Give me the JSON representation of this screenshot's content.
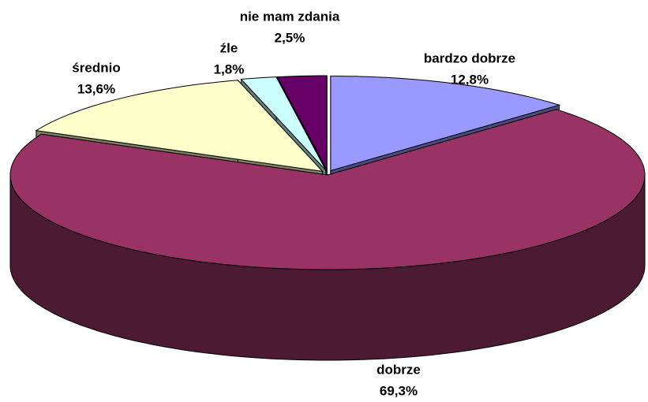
{
  "chart_data": {
    "type": "pie",
    "categories": [
      "bardzo dobrze",
      "dobrze",
      "średnio",
      "źle",
      "nie mam zdania"
    ],
    "values": [
      12.8,
      69.3,
      13.6,
      1.8,
      2.5
    ],
    "value_labels": [
      "12,8%",
      "69,3%",
      "13,6%",
      "1,8%",
      "2,5%"
    ],
    "colors": [
      "#9999ff",
      "#993366",
      "#ffffcc",
      "#ccffff",
      "#660066"
    ]
  }
}
